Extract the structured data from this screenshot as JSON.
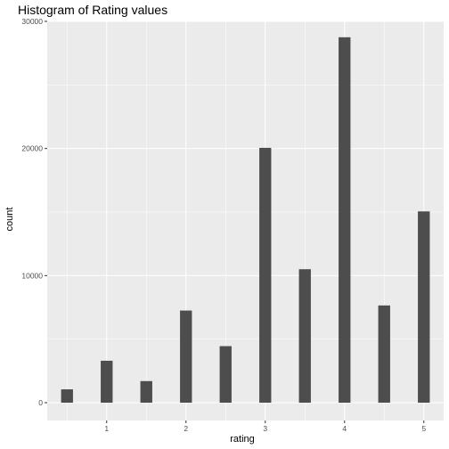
{
  "chart_data": {
    "type": "bar",
    "title": "Histogram of Rating values",
    "xlabel": "rating",
    "ylabel": "count",
    "xlim": [
      0.25,
      5.25
    ],
    "ylim": [
      -1400,
      30000
    ],
    "x_ticks": [
      1,
      2,
      3,
      4,
      5
    ],
    "x_tick_labels": [
      "1",
      "2",
      "3",
      "4",
      "5"
    ],
    "y_ticks": [
      0,
      10000,
      20000,
      30000
    ],
    "y_tick_labels": [
      "0",
      "10000",
      "20000",
      "30000"
    ],
    "bin_width": 0.15,
    "grid": true,
    "series": [
      {
        "x": [
          0.5,
          1.0,
          1.5,
          2.0,
          2.5,
          3.0,
          3.5,
          4.0,
          4.5,
          5.0
        ],
        "values": [
          1050,
          3300,
          1700,
          7250,
          4450,
          20050,
          10500,
          28750,
          7650,
          15050
        ]
      }
    ],
    "colors": {
      "panel": "#ebebeb",
      "grid_major": "#ffffff",
      "bar": "#4d4d4d",
      "tick_label": "#4d4d4d"
    }
  }
}
